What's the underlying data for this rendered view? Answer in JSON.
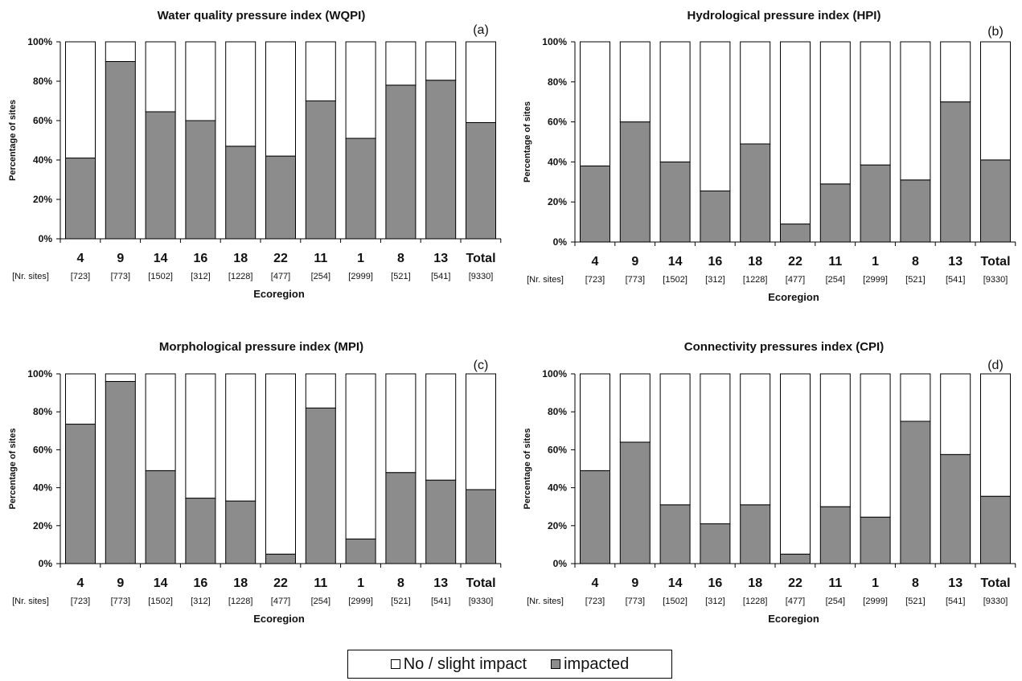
{
  "colors": {
    "impacted": "#8c8c8c",
    "no_impact": "#ffffff",
    "edge": "#000000"
  },
  "legend": [
    {
      "label": "No / slight impact",
      "color": "#ffffff"
    },
    {
      "label": "impacted",
      "color": "#8c8c8c"
    }
  ],
  "chart_data": [
    {
      "type": "bar",
      "stacked": true,
      "panel": "(a)",
      "title": "Water quality pressure index (WQPI)",
      "ylabel": "Percentage of sites",
      "xlabel": "Ecoregion",
      "categories": [
        "4",
        "9",
        "14",
        "16",
        "18",
        "22",
        "11",
        "1",
        "8",
        "13",
        "Total"
      ],
      "n_sites_label": "[Nr. sites]",
      "n_sites": [
        "[723]",
        "[773]",
        "[1502]",
        "[312]",
        "[1228]",
        "[477]",
        "[254]",
        "[2999]",
        "[521]",
        "[541]",
        "[9330]"
      ],
      "yticks": [
        "0%",
        "20%",
        "40%",
        "60%",
        "80%",
        "100%"
      ],
      "ylim": [
        0,
        100
      ],
      "series": [
        {
          "name": "impacted",
          "values": [
            41,
            90,
            64.5,
            60,
            47,
            42,
            70,
            51,
            78,
            80.5,
            59
          ]
        },
        {
          "name": "No / slight impact",
          "values": [
            59,
            10,
            35.5,
            40,
            53,
            58,
            30,
            49,
            22,
            19.5,
            41
          ]
        }
      ]
    },
    {
      "type": "bar",
      "stacked": true,
      "panel": "(b)",
      "title": "Hydrological pressure index (HPI)",
      "ylabel": "Percentage of sites",
      "xlabel": "Ecoregion",
      "categories": [
        "4",
        "9",
        "14",
        "16",
        "18",
        "22",
        "11",
        "1",
        "8",
        "13",
        "Total"
      ],
      "n_sites_label": "[Nr. sites]",
      "n_sites": [
        "[723]",
        "[773]",
        "[1502]",
        "[312]",
        "[1228]",
        "[477]",
        "[254]",
        "[2999]",
        "[521]",
        "[541]",
        "[9330]"
      ],
      "yticks": [
        "0%",
        "20%",
        "40%",
        "60%",
        "80%",
        "100%"
      ],
      "ylim": [
        0,
        100
      ],
      "series": [
        {
          "name": "impacted",
          "values": [
            38,
            60,
            40,
            25.5,
            49,
            9,
            29,
            38.5,
            31,
            70,
            41
          ]
        },
        {
          "name": "No / slight impact",
          "values": [
            62,
            40,
            60,
            74.5,
            51,
            91,
            71,
            61.5,
            69,
            30,
            59
          ]
        }
      ]
    },
    {
      "type": "bar",
      "stacked": true,
      "panel": "(c)",
      "title": "Morphological pressure index (MPI)",
      "ylabel": "Percentage of sites",
      "xlabel": "Ecoregion",
      "categories": [
        "4",
        "9",
        "14",
        "16",
        "18",
        "22",
        "11",
        "1",
        "8",
        "13",
        "Total"
      ],
      "n_sites_label": "[Nr. sites]",
      "n_sites": [
        "[723]",
        "[773]",
        "[1502]",
        "[312]",
        "[1228]",
        "[477]",
        "[254]",
        "[2999]",
        "[521]",
        "[541]",
        "[9330]"
      ],
      "yticks": [
        "0%",
        "20%",
        "40%",
        "60%",
        "80%",
        "100%"
      ],
      "ylim": [
        0,
        100
      ],
      "series": [
        {
          "name": "impacted",
          "values": [
            73.5,
            96,
            49,
            34.5,
            33,
            5,
            82,
            13,
            48,
            44,
            39
          ]
        },
        {
          "name": "No / slight impact",
          "values": [
            26.5,
            4,
            51,
            65.5,
            67,
            95,
            18,
            87,
            52,
            56,
            61
          ]
        }
      ]
    },
    {
      "type": "bar",
      "stacked": true,
      "panel": "(d)",
      "title": "Connectivity pressures index (CPI)",
      "ylabel": "Percentage of sites",
      "xlabel": "Ecoregion",
      "categories": [
        "4",
        "9",
        "14",
        "16",
        "18",
        "22",
        "11",
        "1",
        "8",
        "13",
        "Total"
      ],
      "n_sites_label": "[Nr. sites]",
      "n_sites": [
        "[723]",
        "[773]",
        "[1502]",
        "[312]",
        "[1228]",
        "[477]",
        "[254]",
        "[2999]",
        "[521]",
        "[541]",
        "[9330]"
      ],
      "yticks": [
        "0%",
        "20%",
        "40%",
        "60%",
        "80%",
        "100%"
      ],
      "ylim": [
        0,
        100
      ],
      "series": [
        {
          "name": "impacted",
          "values": [
            49,
            64,
            31,
            21,
            31,
            5,
            30,
            24.5,
            75,
            57.5,
            35.5
          ]
        },
        {
          "name": "No / slight impact",
          "values": [
            51,
            36,
            69,
            79,
            69,
            95,
            70,
            75.5,
            25,
            42.5,
            64.5
          ]
        }
      ]
    }
  ]
}
